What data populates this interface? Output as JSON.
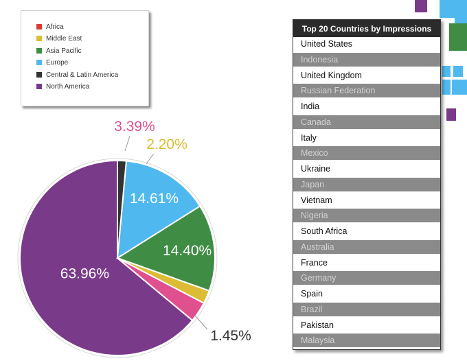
{
  "chart_data": {
    "type": "pie",
    "title": "",
    "legend_position": "top-left",
    "slices": [
      {
        "name": "North America",
        "value": 63.96,
        "label": "63.96%",
        "color": "#7a3a8a"
      },
      {
        "name": "Africa",
        "value": 3.39,
        "label": "3.39%",
        "color": "#e0508f"
      },
      {
        "name": "Middle East",
        "value": 2.2,
        "label": "2.20%",
        "color": "#dcbc34"
      },
      {
        "name": "Asia Pacific",
        "value": 14.4,
        "label": "14.40%",
        "color": "#3f8d44"
      },
      {
        "name": "Europe",
        "value": 14.61,
        "label": "14.61%",
        "color": "#4fb9ef"
      },
      {
        "name": "Central & Latin America",
        "value": 1.45,
        "label": "1.45%",
        "color": "#333333"
      }
    ]
  },
  "legend": {
    "items": [
      {
        "label": "Africa",
        "color": "#dc3b33"
      },
      {
        "label": "Middle East",
        "color": "#dcbc34"
      },
      {
        "label": "Asia Pacific",
        "color": "#3f8d44"
      },
      {
        "label": "Europe",
        "color": "#4fb9ef"
      },
      {
        "label": "Central & Latin America",
        "color": "#333333"
      },
      {
        "label": "North America",
        "color": "#7a3a8a"
      }
    ]
  },
  "countries_table": {
    "title": "Top 20 Countries by Impressions",
    "rows": [
      "United States",
      "Indonesia",
      "United Kingdom",
      "Russian Federation",
      "India",
      "Canada",
      "Italy",
      "Mexico",
      "Ukraine",
      "Japan",
      "Vietnam",
      "Nigeria",
      "South Africa",
      "Australia",
      "France",
      "Germany",
      "Spain",
      "Brazil",
      "Pakistan",
      "Malaysia"
    ]
  }
}
